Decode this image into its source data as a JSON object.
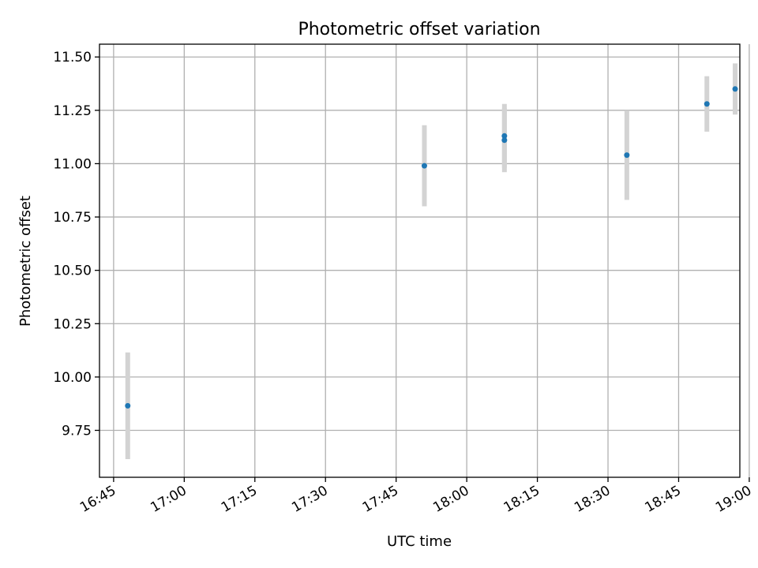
{
  "chart_data": {
    "type": "scatter",
    "title": "Photometric offset variation",
    "xlabel": "UTC time",
    "ylabel": "Photometric offset",
    "grid": true,
    "x_ticks": [
      "16:45",
      "17:00",
      "17:15",
      "17:30",
      "17:45",
      "18:00",
      "18:15",
      "18:30",
      "18:45",
      "19:00"
    ],
    "y_ticks": [
      "9.75",
      "10.00",
      "10.25",
      "10.50",
      "10.75",
      "11.00",
      "11.25",
      "11.50"
    ],
    "xlim": [
      "16:42",
      "18:58"
    ],
    "ylim": [
      9.53,
      11.56
    ],
    "points": [
      {
        "x": "16:48",
        "y": 9.865,
        "err": 0.25
      },
      {
        "x": "17:51",
        "y": 10.99,
        "err": 0.19
      },
      {
        "x": "18:08",
        "y": 11.13,
        "err": 0.15
      },
      {
        "x": "18:08",
        "y": 11.11,
        "err": 0.15
      },
      {
        "x": "18:34",
        "y": 11.04,
        "err": 0.21
      },
      {
        "x": "18:51",
        "y": 11.28,
        "err": 0.13
      },
      {
        "x": "18:57",
        "y": 11.35,
        "err": 0.12
      }
    ],
    "marker_color": "#1f77b4",
    "errorbar_color": "#d3d3d3",
    "grid_color": "#b0b0b0"
  }
}
